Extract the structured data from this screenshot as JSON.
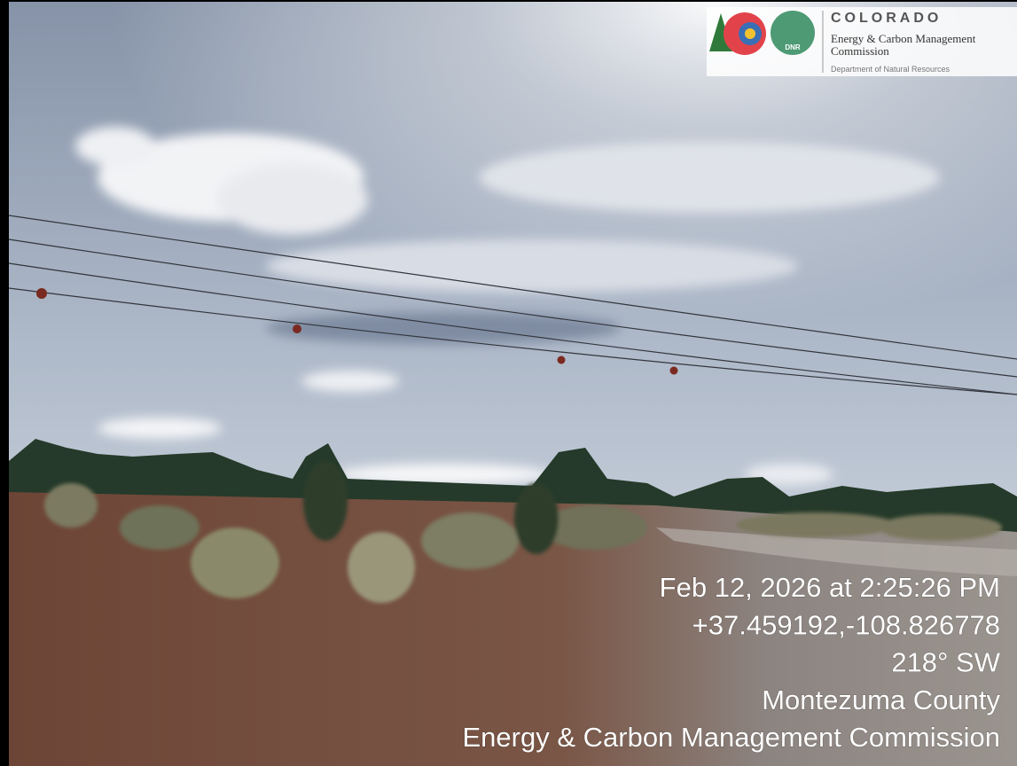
{
  "logo": {
    "state": "COLORADO",
    "agency_line1": "Energy & Carbon Management",
    "agency_line2": "Commission",
    "department": "Department of Natural Resources",
    "badge": "DNR"
  },
  "stamp": {
    "lines": [
      "Feb 12, 2026 at 2:25:26 PM",
      "+37.459192,-108.826778",
      "218° SW",
      "Montezuma County",
      "Energy & Carbon Management Commission"
    ]
  }
}
